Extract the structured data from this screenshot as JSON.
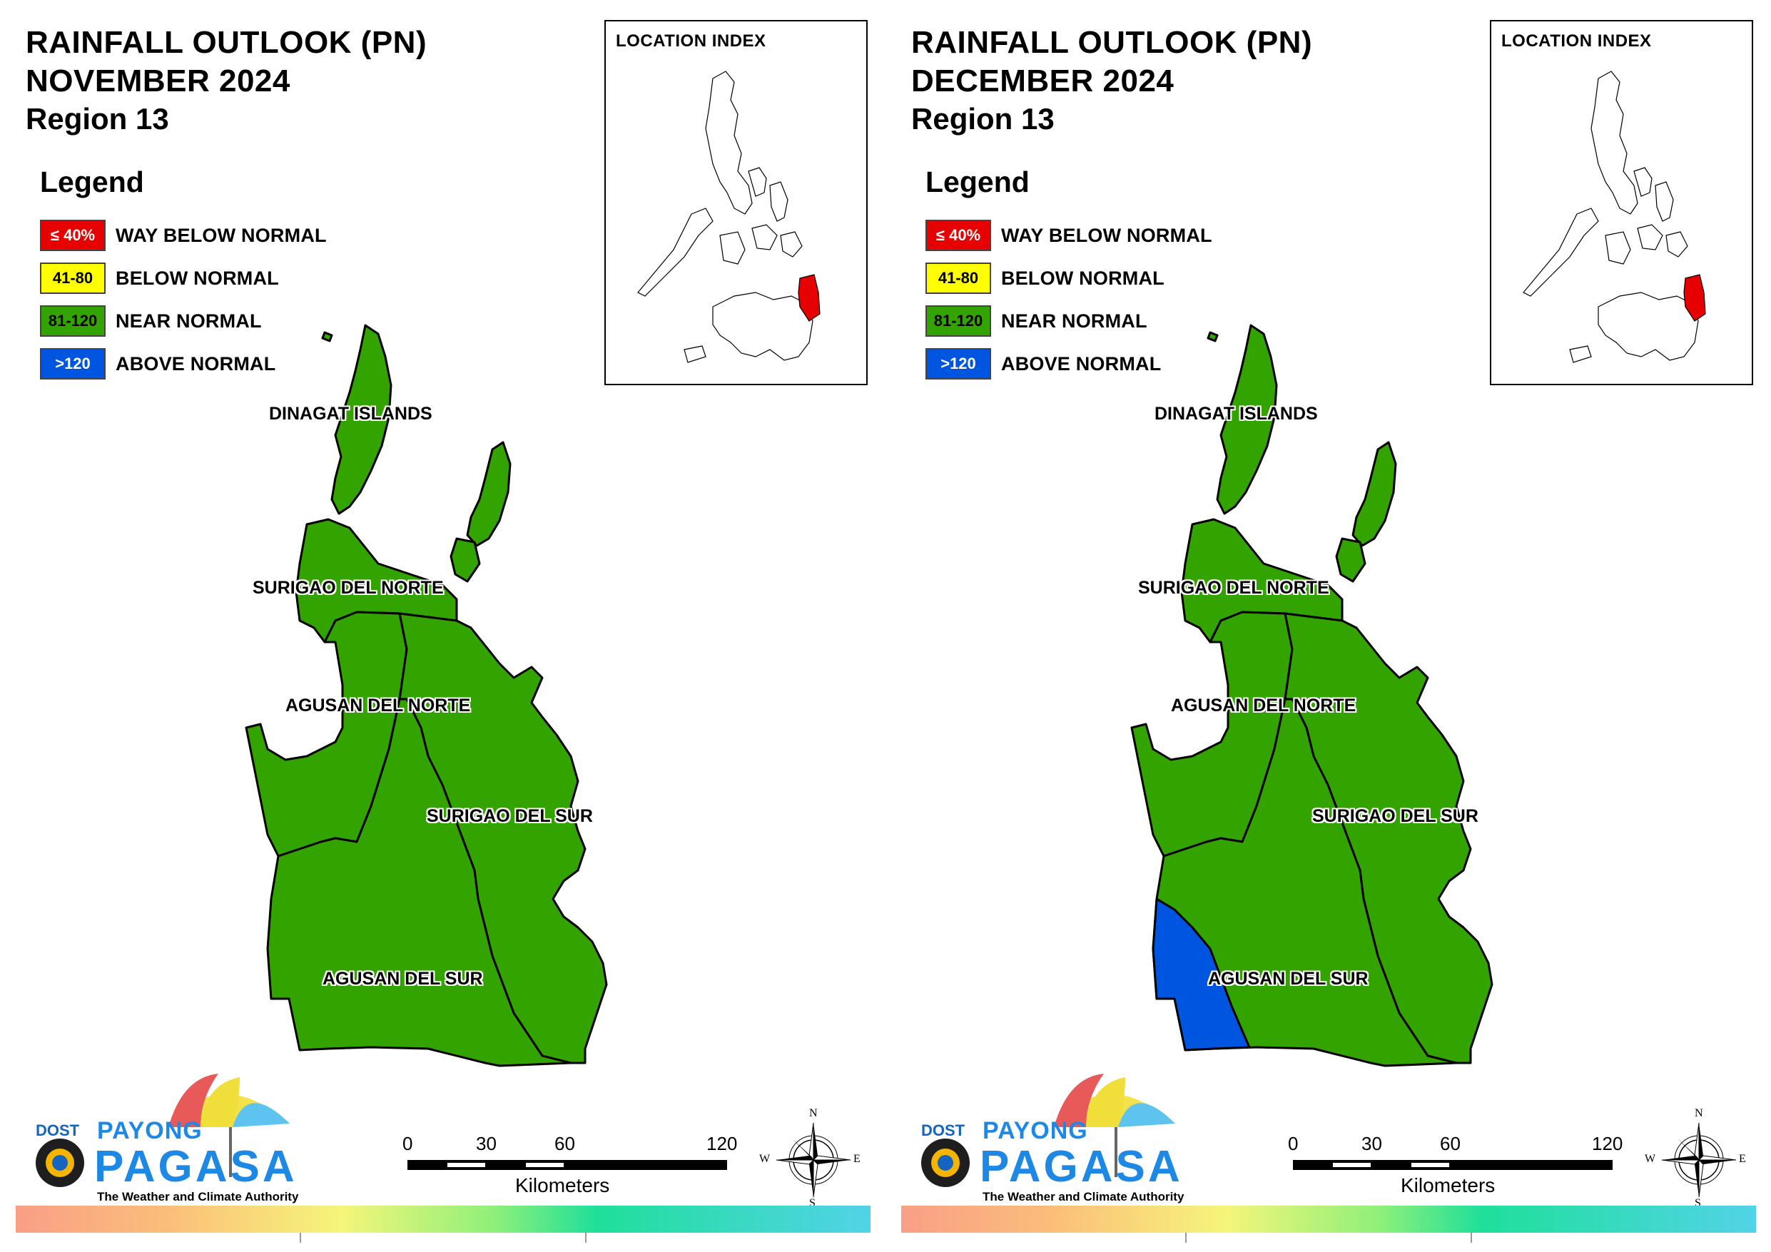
{
  "colors": {
    "way_below": "#e60000",
    "below": "#ffff00",
    "near": "#33a300",
    "above": "#0055e0",
    "outline": "#000000"
  },
  "legend": {
    "title": "Legend",
    "items": [
      {
        "swatch": "≤ 40%",
        "label": "WAY BELOW NORMAL",
        "category": "way_below"
      },
      {
        "swatch": "41-80",
        "label": "BELOW NORMAL",
        "category": "below"
      },
      {
        "swatch": "81-120",
        "label": "NEAR NORMAL",
        "category": "near"
      },
      {
        "swatch": ">120",
        "label": "ABOVE NORMAL",
        "category": "above"
      }
    ]
  },
  "index": {
    "title": "LOCATION INDEX"
  },
  "scalebar": {
    "ticks": [
      "0",
      "30",
      "60",
      "120"
    ],
    "unit": "Kilometers"
  },
  "compass": {
    "n": "N",
    "s": "S",
    "e": "E",
    "w": "W"
  },
  "branding": {
    "dost": "DOST",
    "payong": "PAYONG",
    "pagasa": "PAGASA",
    "tagline": "The Weather and Climate Authority"
  },
  "panels": [
    {
      "title_line1": "RAINFALL OUTLOOK (PN)",
      "title_line2": "NOVEMBER 2024",
      "title_line3": "Region 13",
      "provinces": [
        {
          "name": "DINAGAT ISLANDS",
          "category": "near"
        },
        {
          "name": "SURIGAO DEL NORTE",
          "category": "near"
        },
        {
          "name": "AGUSAN DEL NORTE",
          "category": "near"
        },
        {
          "name": "SURIGAO DEL SUR",
          "category": "near"
        },
        {
          "name": "AGUSAN DEL SUR",
          "category": "near"
        }
      ]
    },
    {
      "title_line1": "RAINFALL OUTLOOK (PN)",
      "title_line2": "DECEMBER 2024",
      "title_line3": "Region 13",
      "provinces": [
        {
          "name": "DINAGAT ISLANDS",
          "category": "near"
        },
        {
          "name": "SURIGAO DEL NORTE",
          "category": "near"
        },
        {
          "name": "AGUSAN DEL NORTE",
          "category": "near"
        },
        {
          "name": "SURIGAO DEL SUR",
          "category": "near"
        },
        {
          "name": "AGUSAN DEL SUR",
          "category": "near",
          "secondary_category": "above"
        }
      ]
    }
  ]
}
